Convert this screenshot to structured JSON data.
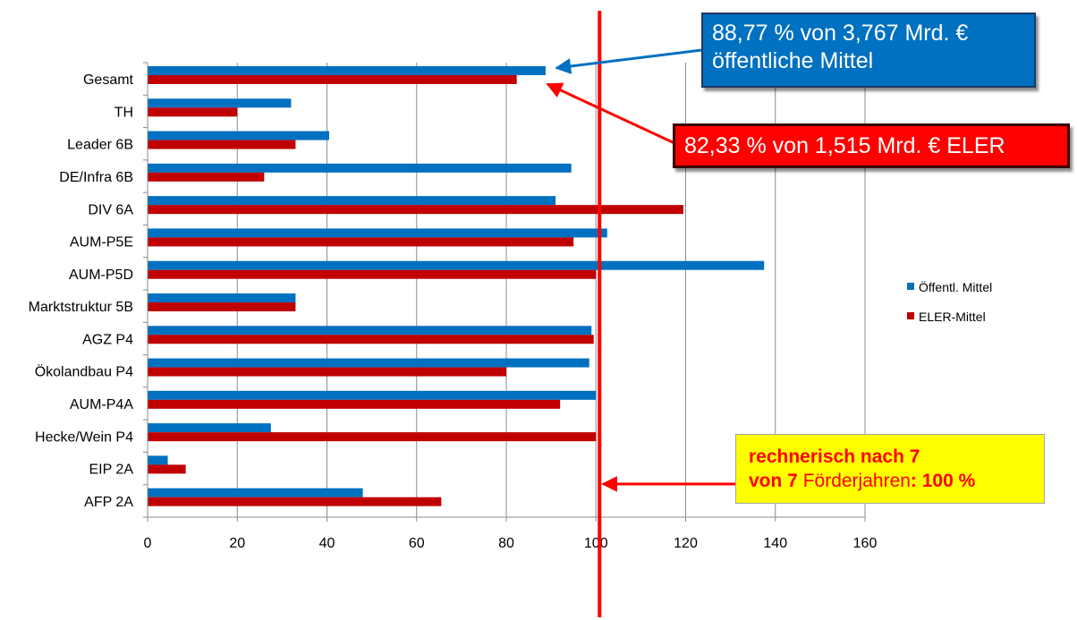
{
  "chart_data": {
    "type": "bar",
    "orientation": "horizontal",
    "categories": [
      "Gesamt",
      "TH",
      "Leader 6B",
      "DE/Infra 6B",
      "DIV 6A",
      "AUM-P5E",
      "AUM-P5D",
      "Marktstruktur 5B",
      "AGZ P4",
      "Ökolandbau P4",
      "AUM-P4A",
      "Hecke/Wein P4",
      "EIP 2A",
      "AFP 2A"
    ],
    "series": [
      {
        "name": "Öffentl. Mittel",
        "color": "#0070c0",
        "values": [
          88.77,
          32,
          40.5,
          94.5,
          91,
          102.5,
          137.5,
          33,
          99,
          98.5,
          100,
          27.5,
          4.5,
          48
        ]
      },
      {
        "name": "ELER-Mittel",
        "color": "#c00000",
        "values": [
          82.33,
          20,
          33,
          26,
          119.5,
          95,
          100,
          33,
          99.5,
          80,
          92,
          100,
          8.5,
          65.5
        ]
      }
    ],
    "xlim": [
      0,
      160
    ],
    "xticks": [
      0,
      20,
      40,
      60,
      80,
      100,
      120,
      140,
      160
    ],
    "grid": true,
    "legend": "right",
    "reference_line": {
      "value": 100,
      "color": "#ff0000"
    }
  },
  "annotations": {
    "public_line1": "88,77 % von 3,767 Mrd. €",
    "public_line2": "öffentliche Mittel",
    "eler": "82,33 % von 1,515 Mrd. € ELER",
    "target_bold1": "rechnerisch nach 7",
    "target_bold2": "von 7",
    "target_normal": " Förderjahren",
    "target_bold3": ": 100 %"
  },
  "colors": {
    "public": "#0070c0",
    "eler": "#c00000",
    "reference": "#ff0000",
    "target_box": "#ffff00"
  }
}
